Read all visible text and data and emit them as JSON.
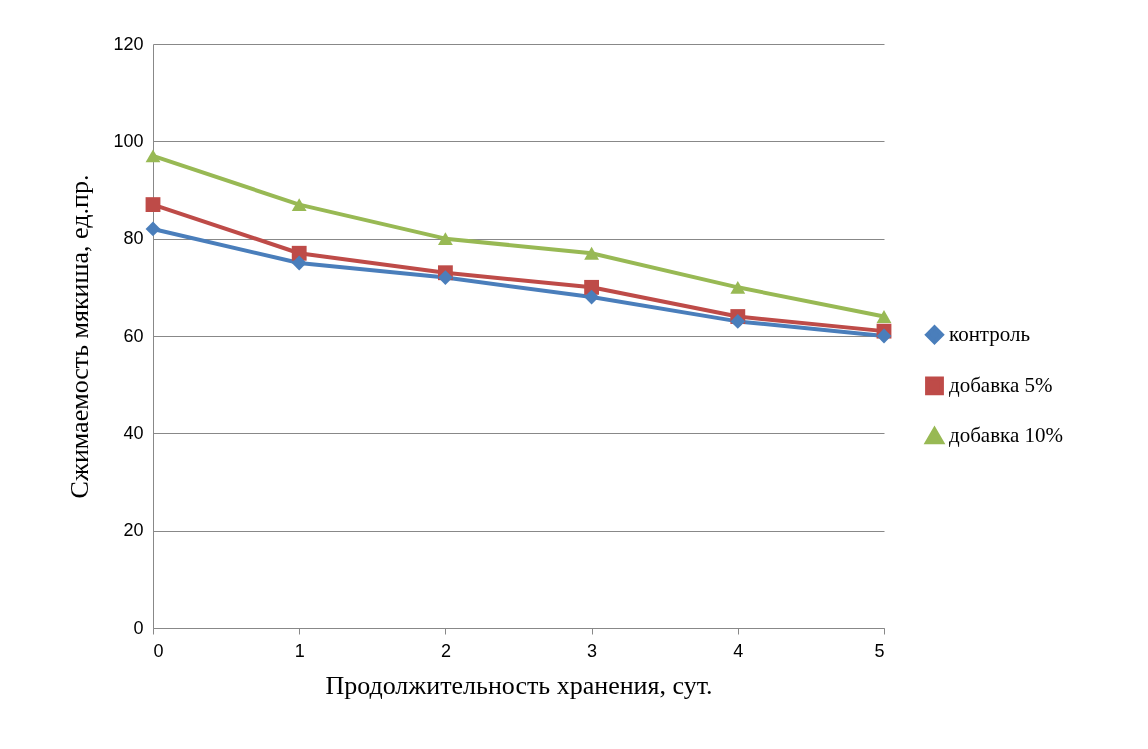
{
  "chart_data": {
    "type": "line",
    "xlabel": "Продолжительность хранения, сут.",
    "ylabel": "Сжимаемость мякиша, ед.пр.",
    "x": [
      0,
      1,
      2,
      3,
      4,
      5
    ],
    "xlim": [
      0,
      5
    ],
    "xticks": [
      0,
      1,
      2,
      3,
      4,
      5
    ],
    "ylim": [
      0,
      120
    ],
    "yticks": [
      0,
      20,
      40,
      60,
      80,
      100,
      120
    ],
    "grid": "y",
    "legend": "right",
    "line_style": "solid",
    "series": [
      {
        "name": "контроль",
        "color": "#4a7ebb",
        "marker": "diamond",
        "values": [
          82,
          75,
          72,
          68,
          63,
          60
        ]
      },
      {
        "name": "добавка 5%",
        "color": "#be4b48",
        "marker": "square",
        "values": [
          87,
          77,
          73,
          70,
          64,
          61
        ]
      },
      {
        "name": "добавка 10%",
        "color": "#98b954",
        "marker": "triangle",
        "values": [
          97,
          87,
          80,
          77,
          70,
          64
        ]
      }
    ]
  }
}
